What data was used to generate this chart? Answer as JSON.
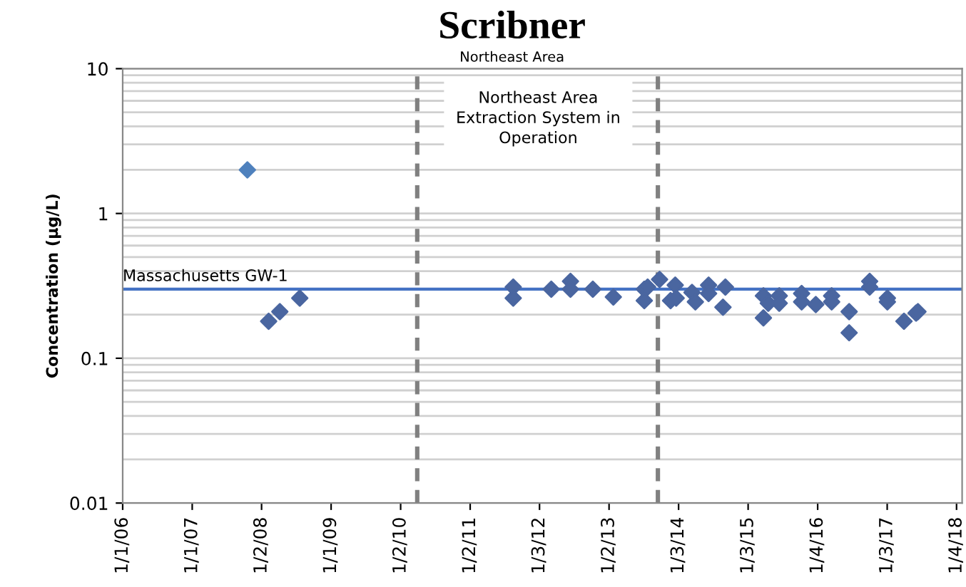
{
  "chart_data": {
    "type": "scatter",
    "title": "Scribner",
    "subtitle": "Northeast Area",
    "ylabel": "Concentration (µg/L)",
    "log": "y",
    "ylim": [
      0.01,
      10
    ],
    "yticks": [
      0.01,
      0.1,
      1,
      10
    ],
    "grid": "y",
    "marker": "diamond",
    "xlim": [
      "2006-01-01",
      "2018-05-01"
    ],
    "xticks": [
      {
        "value": "2006-01-01",
        "label": "1/1/06"
      },
      {
        "value": "2007-01-09",
        "label": "1/1/07"
      },
      {
        "value": "2008-01-16",
        "label": "1/2/08"
      },
      {
        "value": "2009-01-23",
        "label": "1/1/09"
      },
      {
        "value": "2010-01-31",
        "label": "1/2/10"
      },
      {
        "value": "2011-02-08",
        "label": "1/2/11"
      },
      {
        "value": "2012-02-15",
        "label": "1/3/12"
      },
      {
        "value": "2013-02-22",
        "label": "1/2/13"
      },
      {
        "value": "2014-03-02",
        "label": "1/3/14"
      },
      {
        "value": "2015-03-10",
        "label": "1/3/15"
      },
      {
        "value": "2016-03-17",
        "label": "1/4/16"
      },
      {
        "value": "2017-03-25",
        "label": "1/3/17"
      },
      {
        "value": "2018-04-01",
        "label": "1/4/18"
      }
    ],
    "series": [
      {
        "color": "#4a66a0",
        "x": [
          "2008-02-23",
          "2008-04-23",
          "2008-08-08",
          "2011-09-27",
          "2011-09-27",
          "2012-04-18",
          "2012-07-30",
          "2012-07-30",
          "2012-11-27",
          "2013-03-17",
          "2013-08-30",
          "2013-09-17",
          "2013-08-30",
          "2013-11-20",
          "2014-01-18",
          "2014-02-12",
          "2014-02-17",
          "2014-05-13",
          "2014-05-31",
          "2014-08-10",
          "2014-08-10",
          "2014-10-26",
          "2014-11-08",
          "2015-05-31",
          "2015-05-31",
          "2015-06-26",
          "2015-08-24",
          "2015-08-24",
          "2015-12-22",
          "2015-12-22",
          "2016-03-07",
          "2016-05-31",
          "2016-05-31",
          "2016-09-02",
          "2016-09-02",
          "2016-12-21",
          "2016-12-21",
          "2017-03-26",
          "2017-03-26",
          "2017-06-23",
          "2017-08-27",
          "2017-09-06"
        ],
        "values": [
          0.18,
          0.21,
          0.26,
          0.31,
          0.26,
          0.3,
          0.34,
          0.3,
          0.3,
          0.265,
          0.3,
          0.31,
          0.25,
          0.35,
          0.25,
          0.32,
          0.26,
          0.285,
          0.245,
          0.32,
          0.28,
          0.225,
          0.31,
          0.27,
          0.19,
          0.24,
          0.27,
          0.24,
          0.28,
          0.245,
          0.235,
          0.27,
          0.245,
          0.21,
          0.15,
          0.34,
          0.31,
          0.26,
          0.245,
          0.18,
          0.205,
          0.21
        ]
      },
      {
        "color": "#4f81bd",
        "x": [
          "2007-11-01"
        ],
        "values": [
          2.0
        ]
      }
    ],
    "ref_lines": [
      {
        "axis": "y",
        "value": 0.3,
        "label": "Massachusetts GW-1",
        "color": "#4472c4",
        "line_style": "solid"
      },
      {
        "axis": "x",
        "value": "2010-04-30",
        "label": null,
        "color": "#808080",
        "line_style": "dashed"
      },
      {
        "axis": "x",
        "value": "2013-11-11",
        "label": null,
        "color": "#808080",
        "line_style": "dashed"
      }
    ],
    "annotations": [
      "Northeast Area\nExtraction System in\nOperation"
    ]
  }
}
